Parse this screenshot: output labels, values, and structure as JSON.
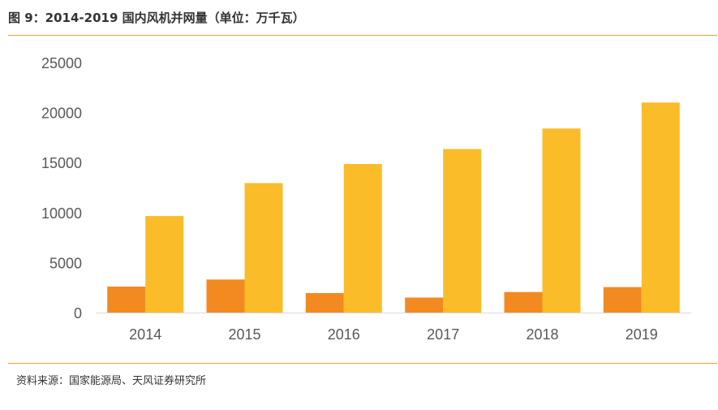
{
  "header": {
    "title": "图 9：2014-2019 国内风机并网量（单位：万千瓦）"
  },
  "footer": {
    "source": "资料来源：国家能源局、天风证券研究所"
  },
  "chart_data": {
    "type": "bar",
    "title": "图 9：2014-2019 国内风机并网量（单位：万千瓦）",
    "categories": [
      "2014",
      "2015",
      "2016",
      "2017",
      "2018",
      "2019"
    ],
    "series": [
      {
        "values": [
          2600,
          3300,
          1950,
          1500,
          2050,
          2550
        ],
        "color": "#f28a21"
      },
      {
        "values": [
          9650,
          12950,
          14850,
          16350,
          18400,
          21000
        ],
        "color": "#fbbc2a"
      }
    ],
    "ylim": [
      0,
      25000
    ],
    "yticks": [
      0,
      5000,
      10000,
      15000,
      20000,
      25000
    ],
    "grid": false,
    "legend": "none"
  }
}
